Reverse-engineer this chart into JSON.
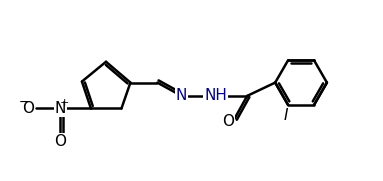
{
  "background_color": "#ffffff",
  "line_color": "#000000",
  "line_width": 1.8,
  "font_size_atoms": 11,
  "font_size_charge": 8,
  "label_color_N": "#00008B",
  "label_color_default": "#000000",
  "xlim": [
    0,
    10
  ],
  "ylim": [
    0,
    5
  ]
}
